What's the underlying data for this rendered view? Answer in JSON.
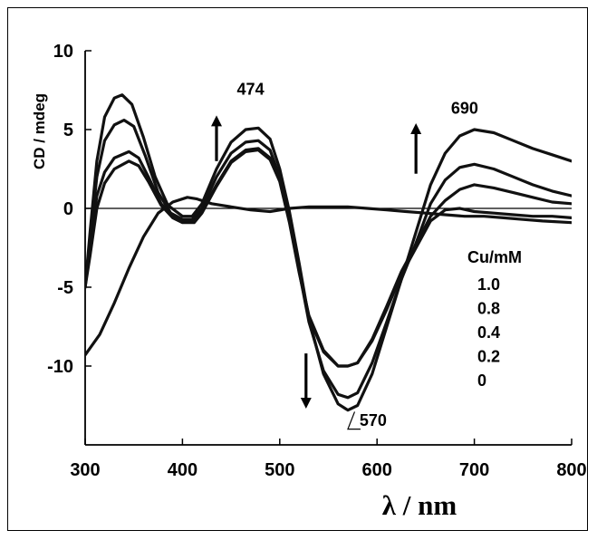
{
  "chart_data": {
    "type": "line",
    "title": "",
    "xlabel": "λ / nm",
    "ylabel": "CD / mdeg",
    "xlim": [
      300,
      800
    ],
    "ylim": [
      -15,
      10
    ],
    "x_ticks": [
      300,
      400,
      500,
      600,
      700,
      800
    ],
    "y_ticks": [
      10,
      5,
      0,
      -5,
      -10
    ],
    "grid": false,
    "legend": {
      "title": "Cu/mM",
      "placement": "right",
      "entries": [
        "1.0",
        "0.8",
        "0.4",
        "0.2",
        "0"
      ]
    },
    "annotations": [
      {
        "text": "474",
        "x": 470,
        "y": 7.2
      },
      {
        "text": "690",
        "x": 690,
        "y": 6.0
      },
      {
        "text": "570",
        "x": 596,
        "y": -13.8
      }
    ],
    "arrows": [
      {
        "x": 435,
        "y_from": 3.0,
        "y_to": 5.9,
        "direction": "up"
      },
      {
        "x": 640,
        "y_from": 2.2,
        "y_to": 5.4,
        "direction": "up"
      },
      {
        "x": 527,
        "y_from": -9.2,
        "y_to": -12.7,
        "direction": "down"
      }
    ],
    "zero_line": true,
    "series": [
      {
        "values": [
          [
            300,
            -5.0
          ],
          [
            305,
            -1.5
          ],
          [
            312,
            3.0
          ],
          [
            320,
            5.8
          ],
          [
            330,
            7.0
          ],
          [
            338,
            7.2
          ],
          [
            348,
            6.6
          ],
          [
            360,
            4.5
          ],
          [
            372,
            2.0
          ],
          [
            385,
            0.2
          ],
          [
            400,
            -0.5
          ],
          [
            410,
            -0.5
          ],
          [
            420,
            0.3
          ],
          [
            435,
            2.5
          ],
          [
            450,
            4.2
          ],
          [
            465,
            5.0
          ],
          [
            478,
            5.1
          ],
          [
            490,
            4.4
          ],
          [
            500,
            2.5
          ],
          [
            510,
            -0.2
          ],
          [
            520,
            -3.5
          ],
          [
            530,
            -7.0
          ],
          [
            545,
            -10.5
          ],
          [
            560,
            -12.4
          ],
          [
            570,
            -12.8
          ],
          [
            580,
            -12.5
          ],
          [
            595,
            -10.5
          ],
          [
            610,
            -7.5
          ],
          [
            625,
            -4.5
          ],
          [
            640,
            -1.5
          ],
          [
            655,
            1.5
          ],
          [
            670,
            3.5
          ],
          [
            685,
            4.6
          ],
          [
            700,
            5.0
          ],
          [
            720,
            4.8
          ],
          [
            740,
            4.3
          ],
          [
            760,
            3.8
          ],
          [
            780,
            3.4
          ],
          [
            800,
            3.0
          ]
        ]
      },
      {
        "values": [
          [
            300,
            -5.0
          ],
          [
            305,
            -2.0
          ],
          [
            312,
            2.0
          ],
          [
            320,
            4.3
          ],
          [
            330,
            5.3
          ],
          [
            340,
            5.6
          ],
          [
            350,
            5.2
          ],
          [
            362,
            3.3
          ],
          [
            375,
            1.0
          ],
          [
            388,
            -0.3
          ],
          [
            400,
            -0.7
          ],
          [
            410,
            -0.7
          ],
          [
            420,
            0.0
          ],
          [
            435,
            2.0
          ],
          [
            450,
            3.5
          ],
          [
            465,
            4.2
          ],
          [
            478,
            4.3
          ],
          [
            490,
            3.7
          ],
          [
            500,
            2.0
          ],
          [
            510,
            -0.6
          ],
          [
            520,
            -4.0
          ],
          [
            530,
            -7.2
          ],
          [
            545,
            -10.3
          ],
          [
            560,
            -11.8
          ],
          [
            570,
            -12.0
          ],
          [
            580,
            -11.7
          ],
          [
            595,
            -9.8
          ],
          [
            610,
            -7.2
          ],
          [
            625,
            -4.5
          ],
          [
            640,
            -2.2
          ],
          [
            655,
            0.3
          ],
          [
            670,
            1.8
          ],
          [
            685,
            2.6
          ],
          [
            700,
            2.8
          ],
          [
            720,
            2.5
          ],
          [
            740,
            2.0
          ],
          [
            760,
            1.5
          ],
          [
            780,
            1.1
          ],
          [
            800,
            0.8
          ]
        ]
      },
      {
        "values": [
          [
            300,
            -5.0
          ],
          [
            305,
            -2.5
          ],
          [
            312,
            0.8
          ],
          [
            320,
            2.3
          ],
          [
            330,
            3.2
          ],
          [
            345,
            3.6
          ],
          [
            355,
            3.2
          ],
          [
            365,
            2.0
          ],
          [
            378,
            0.3
          ],
          [
            390,
            -0.5
          ],
          [
            400,
            -0.8
          ],
          [
            412,
            -0.8
          ],
          [
            420,
            -0.2
          ],
          [
            435,
            1.5
          ],
          [
            450,
            3.0
          ],
          [
            465,
            3.7
          ],
          [
            478,
            3.8
          ],
          [
            490,
            3.2
          ],
          [
            500,
            1.8
          ],
          [
            510,
            -0.8
          ],
          [
            520,
            -4.0
          ],
          [
            530,
            -6.8
          ],
          [
            545,
            -9.0
          ],
          [
            560,
            -10.0
          ],
          [
            570,
            -10.0
          ],
          [
            580,
            -9.8
          ],
          [
            595,
            -8.3
          ],
          [
            610,
            -6.2
          ],
          [
            625,
            -4.0
          ],
          [
            640,
            -2.3
          ],
          [
            655,
            -0.5
          ],
          [
            670,
            0.5
          ],
          [
            685,
            1.2
          ],
          [
            700,
            1.5
          ],
          [
            720,
            1.3
          ],
          [
            740,
            1.0
          ],
          [
            760,
            0.7
          ],
          [
            780,
            0.4
          ],
          [
            800,
            0.3
          ]
        ]
      },
      {
        "values": [
          [
            300,
            -5.0
          ],
          [
            305,
            -3.0
          ],
          [
            312,
            0.0
          ],
          [
            320,
            1.6
          ],
          [
            330,
            2.5
          ],
          [
            345,
            3.0
          ],
          [
            355,
            2.7
          ],
          [
            365,
            1.7
          ],
          [
            378,
            0.2
          ],
          [
            390,
            -0.6
          ],
          [
            400,
            -0.9
          ],
          [
            412,
            -0.9
          ],
          [
            420,
            -0.3
          ],
          [
            435,
            1.4
          ],
          [
            450,
            2.9
          ],
          [
            465,
            3.6
          ],
          [
            478,
            3.7
          ],
          [
            490,
            3.1
          ],
          [
            500,
            1.7
          ],
          [
            510,
            -0.9
          ],
          [
            520,
            -4.1
          ],
          [
            530,
            -6.9
          ],
          [
            545,
            -9.1
          ],
          [
            560,
            -10.0
          ],
          [
            570,
            -10.0
          ],
          [
            580,
            -9.8
          ],
          [
            595,
            -8.4
          ],
          [
            610,
            -6.4
          ],
          [
            625,
            -4.2
          ],
          [
            640,
            -2.5
          ],
          [
            655,
            -0.8
          ],
          [
            670,
            -0.1
          ],
          [
            685,
            0.0
          ],
          [
            700,
            -0.2
          ],
          [
            720,
            -0.3
          ],
          [
            740,
            -0.4
          ],
          [
            760,
            -0.5
          ],
          [
            780,
            -0.5
          ],
          [
            800,
            -0.6
          ]
        ]
      },
      {
        "values": [
          [
            300,
            -9.3
          ],
          [
            315,
            -8.0
          ],
          [
            330,
            -6.0
          ],
          [
            345,
            -3.8
          ],
          [
            360,
            -1.8
          ],
          [
            375,
            -0.3
          ],
          [
            390,
            0.4
          ],
          [
            405,
            0.7
          ],
          [
            415,
            0.6
          ],
          [
            430,
            0.3
          ],
          [
            450,
            0.1
          ],
          [
            470,
            -0.1
          ],
          [
            490,
            -0.2
          ],
          [
            510,
            0.0
          ],
          [
            530,
            0.1
          ],
          [
            550,
            0.1
          ],
          [
            570,
            0.1
          ],
          [
            590,
            0.0
          ],
          [
            610,
            -0.1
          ],
          [
            630,
            -0.2
          ],
          [
            650,
            -0.3
          ],
          [
            670,
            -0.4
          ],
          [
            690,
            -0.5
          ],
          [
            710,
            -0.5
          ],
          [
            730,
            -0.6
          ],
          [
            750,
            -0.7
          ],
          [
            770,
            -0.8
          ],
          [
            800,
            -0.9
          ]
        ]
      }
    ]
  }
}
